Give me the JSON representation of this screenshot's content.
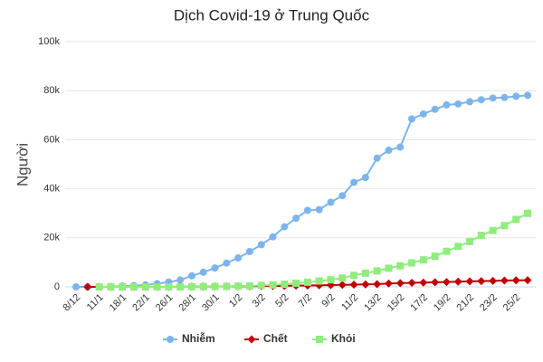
{
  "chart_data": {
    "type": "line",
    "title": "Dịch Covid-19 ở Trung Quốc",
    "y_label": "Người",
    "categories": [
      "8/12",
      null,
      "11/1",
      null,
      "18/1",
      null,
      "22/1",
      null,
      "26/1",
      null,
      "28/1",
      null,
      "30/1",
      null,
      "1/2",
      null,
      "3/2",
      null,
      "5/2",
      null,
      "7/2",
      null,
      "9/2",
      null,
      "11/2",
      null,
      "13/2",
      null,
      "15/2",
      null,
      "17/2",
      null,
      "19/2",
      null,
      "21/2",
      null,
      "23/2",
      null,
      "25/2",
      null
    ],
    "series": [
      {
        "name": "Nhiễm",
        "color": "#7cb5ec",
        "marker": "circle",
        "values": [
          0,
          0,
          50,
          100,
          300,
          500,
          800,
          1300,
          2000,
          2800,
          4500,
          6000,
          7700,
          9700,
          11800,
          14400,
          17200,
          20400,
          24500,
          28000,
          31200,
          31500,
          34500,
          37200,
          42600,
          44600,
          52500,
          55700,
          57000,
          68500,
          70500,
          72400,
          74200,
          74600,
          75500,
          76300,
          77000,
          77200,
          77700,
          78100
        ]
      },
      {
        "name": "Chết",
        "color": "#c00000",
        "marker": "diamond",
        "values": [
          null,
          0,
          0,
          0,
          0,
          0,
          10,
          20,
          40,
          60,
          80,
          100,
          130,
          170,
          210,
          260,
          300,
          360,
          430,
          490,
          560,
          640,
          720,
          810,
          910,
          1020,
          1110,
          1370,
          1520,
          1670,
          1770,
          1870,
          2000,
          2120,
          2240,
          2350,
          2440,
          2590,
          2670,
          2720
        ]
      },
      {
        "name": "Khỏi",
        "color": "#90ed7d",
        "marker": "square",
        "values": [
          null,
          null,
          0,
          0,
          0,
          0,
          0,
          0,
          0,
          0,
          50,
          100,
          150,
          200,
          300,
          400,
          600,
          800,
          1100,
          1500,
          1900,
          2400,
          2900,
          3600,
          4700,
          5600,
          6500,
          7600,
          8600,
          9800,
          11000,
          12500,
          14500,
          16500,
          18500,
          21000,
          23000,
          25000,
          27500,
          30000
        ]
      }
    ],
    "ylim": [
      0,
      100000
    ],
    "yticks": [
      0,
      {
        "value": 20000,
        "label": "20k"
      },
      {
        "value": 40000,
        "label": "40k"
      },
      {
        "value": 60000,
        "label": "60k"
      },
      {
        "value": 80000,
        "label": "80k"
      },
      {
        "value": 100000,
        "label": "100k"
      }
    ],
    "grid": true,
    "legend": "bottom"
  }
}
